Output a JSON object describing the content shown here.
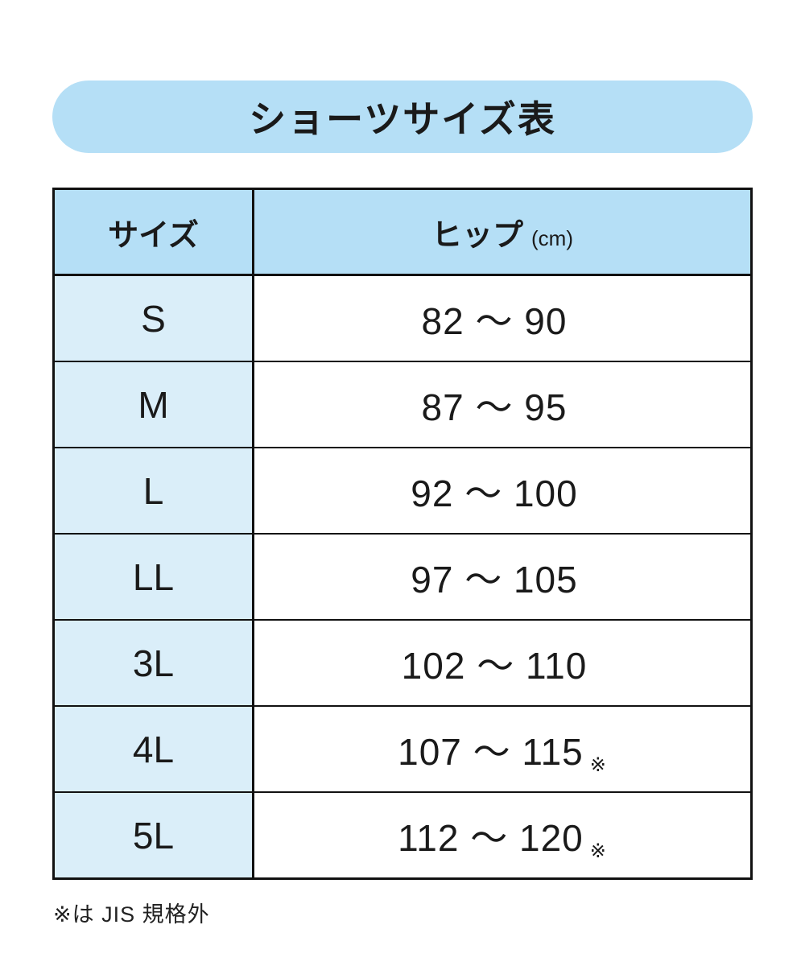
{
  "title": "ショーツサイズ表",
  "table": {
    "headers": {
      "size": "サイズ",
      "hip": "ヒップ",
      "hip_unit": "(cm)"
    },
    "rows": [
      {
        "size": "S",
        "hip": "82 〜 90",
        "note": ""
      },
      {
        "size": "M",
        "hip": "87 〜 95",
        "note": ""
      },
      {
        "size": "L",
        "hip": "92 〜 100",
        "note": ""
      },
      {
        "size": "LL",
        "hip": "97 〜 105",
        "note": ""
      },
      {
        "size": "3L",
        "hip": "102 〜 110",
        "note": ""
      },
      {
        "size": "4L",
        "hip": "107 〜 115",
        "note": "※"
      },
      {
        "size": "5L",
        "hip": "112 〜 120",
        "note": "※"
      }
    ]
  },
  "footnote": "※は JIS 規格外",
  "colors": {
    "pill_blue": "#b5dff6",
    "header_blue": "#b5dff6",
    "row_blue": "#daeef9",
    "border": "#111111",
    "text": "#1a1a1a"
  },
  "chart_data": {
    "type": "table",
    "title": "ショーツサイズ表",
    "columns": [
      "サイズ",
      "ヒップ (cm)"
    ],
    "rows": [
      [
        "S",
        "82 〜 90"
      ],
      [
        "M",
        "87 〜 95"
      ],
      [
        "L",
        "92 〜 100"
      ],
      [
        "LL",
        "97 〜 105"
      ],
      [
        "3L",
        "102 〜 110"
      ],
      [
        "4L",
        "107 〜 115 ※"
      ],
      [
        "5L",
        "112 〜 120 ※"
      ]
    ],
    "hip_ranges_cm": [
      {
        "size": "S",
        "min": 82,
        "max": 90,
        "jis_standard": true
      },
      {
        "size": "M",
        "min": 87,
        "max": 95,
        "jis_standard": true
      },
      {
        "size": "L",
        "min": 92,
        "max": 100,
        "jis_standard": true
      },
      {
        "size": "LL",
        "min": 97,
        "max": 105,
        "jis_standard": true
      },
      {
        "size": "3L",
        "min": 102,
        "max": 110,
        "jis_standard": true
      },
      {
        "size": "4L",
        "min": 107,
        "max": 115,
        "jis_standard": false
      },
      {
        "size": "5L",
        "min": 112,
        "max": 120,
        "jis_standard": false
      }
    ],
    "footnote": "※は JIS 規格外"
  }
}
